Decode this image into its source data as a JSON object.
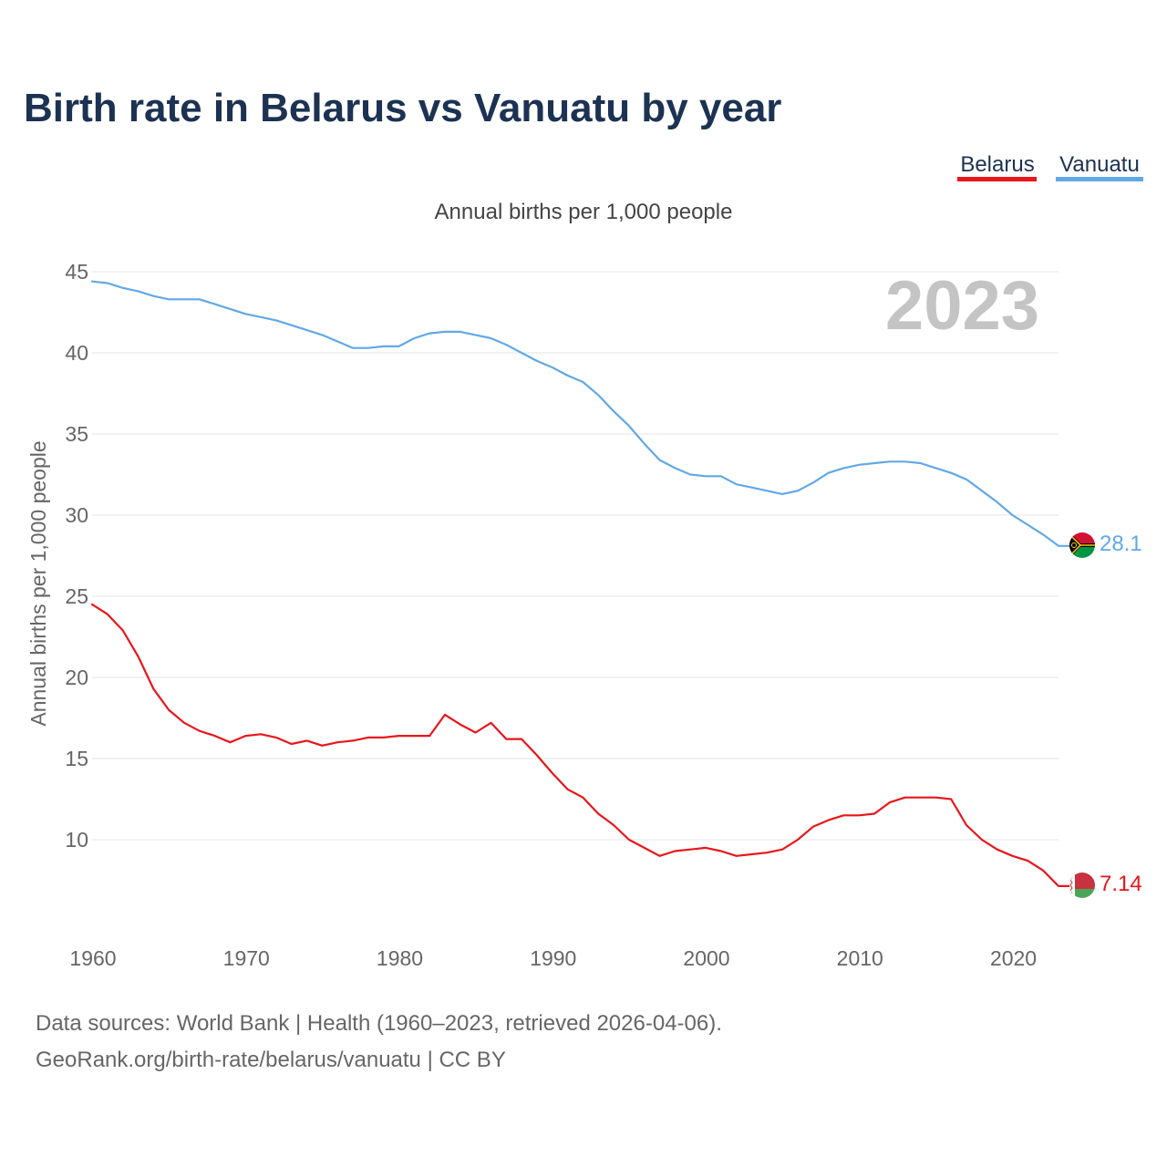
{
  "page": {
    "title": "Birth rate in Belarus vs Vanuatu by year",
    "subtitle": "Annual births per 1,000 people",
    "year_label": "2023",
    "footer_line1": "Data sources: World Bank | Health (1960–2023, retrieved 2026-04-06).",
    "footer_line2": "GeoRank.org/birth-rate/belarus/vanuatu | CC BY"
  },
  "legend": {
    "items": [
      {
        "label": "Belarus",
        "color": "#e8161b"
      },
      {
        "label": "Vanuatu",
        "color": "#62a8e6"
      }
    ]
  },
  "chart_data": {
    "type": "line",
    "title": "Birth rate in Belarus vs Vanuatu by year",
    "subtitle": "Annual births per 1,000 people",
    "xlabel": "",
    "ylabel": "Annual births per 1,000 people",
    "xlim": [
      1960,
      2023
    ],
    "ylim": [
      5,
      45
    ],
    "x_ticks": [
      1960,
      1970,
      1980,
      1990,
      2000,
      2010,
      2020
    ],
    "y_ticks": [
      10,
      15,
      20,
      25,
      30,
      35,
      40,
      45
    ],
    "grid": true,
    "legend_position": "top-right",
    "x": [
      1960,
      1961,
      1962,
      1963,
      1964,
      1965,
      1966,
      1967,
      1968,
      1969,
      1970,
      1971,
      1972,
      1973,
      1974,
      1975,
      1976,
      1977,
      1978,
      1979,
      1980,
      1981,
      1982,
      1983,
      1984,
      1985,
      1986,
      1987,
      1988,
      1989,
      1990,
      1991,
      1992,
      1993,
      1994,
      1995,
      1996,
      1997,
      1998,
      1999,
      2000,
      2001,
      2002,
      2003,
      2004,
      2005,
      2006,
      2007,
      2008,
      2009,
      2010,
      2011,
      2012,
      2013,
      2014,
      2015,
      2016,
      2017,
      2018,
      2019,
      2020,
      2021,
      2022,
      2023
    ],
    "series": [
      {
        "name": "Belarus",
        "color": "#e8161b",
        "end_label": "7.14",
        "values": [
          24.5,
          23.9,
          22.9,
          21.3,
          19.3,
          18.0,
          17.2,
          16.7,
          16.4,
          16.0,
          16.4,
          16.5,
          16.3,
          15.9,
          16.1,
          15.8,
          16.0,
          16.1,
          16.3,
          16.3,
          16.4,
          16.4,
          16.4,
          17.7,
          17.1,
          16.6,
          17.2,
          16.2,
          16.2,
          15.2,
          14.1,
          13.1,
          12.6,
          11.6,
          10.9,
          10.0,
          9.5,
          9.0,
          9.3,
          9.4,
          9.5,
          9.3,
          9.0,
          9.1,
          9.2,
          9.4,
          10.0,
          10.8,
          11.2,
          11.5,
          11.5,
          11.6,
          12.3,
          12.6,
          12.6,
          12.6,
          12.5,
          10.9,
          10.0,
          9.4,
          9.0,
          8.7,
          8.1,
          7.14
        ]
      },
      {
        "name": "Vanuatu",
        "color": "#62a8e6",
        "end_label": "28.1",
        "values": [
          44.4,
          44.3,
          44.0,
          43.8,
          43.5,
          43.3,
          43.3,
          43.3,
          43.0,
          42.7,
          42.4,
          42.2,
          42.0,
          41.7,
          41.4,
          41.1,
          40.7,
          40.3,
          40.3,
          40.4,
          40.4,
          40.9,
          41.2,
          41.3,
          41.3,
          41.1,
          40.9,
          40.5,
          40.0,
          39.5,
          39.1,
          38.6,
          38.2,
          37.4,
          36.4,
          35.5,
          34.4,
          33.4,
          32.9,
          32.5,
          32.4,
          32.4,
          31.9,
          31.7,
          31.5,
          31.3,
          31.5,
          32.0,
          32.6,
          32.9,
          33.1,
          33.2,
          33.3,
          33.3,
          33.2,
          32.9,
          32.6,
          32.2,
          31.5,
          30.8,
          30.0,
          29.4,
          28.8,
          28.1
        ]
      }
    ]
  }
}
